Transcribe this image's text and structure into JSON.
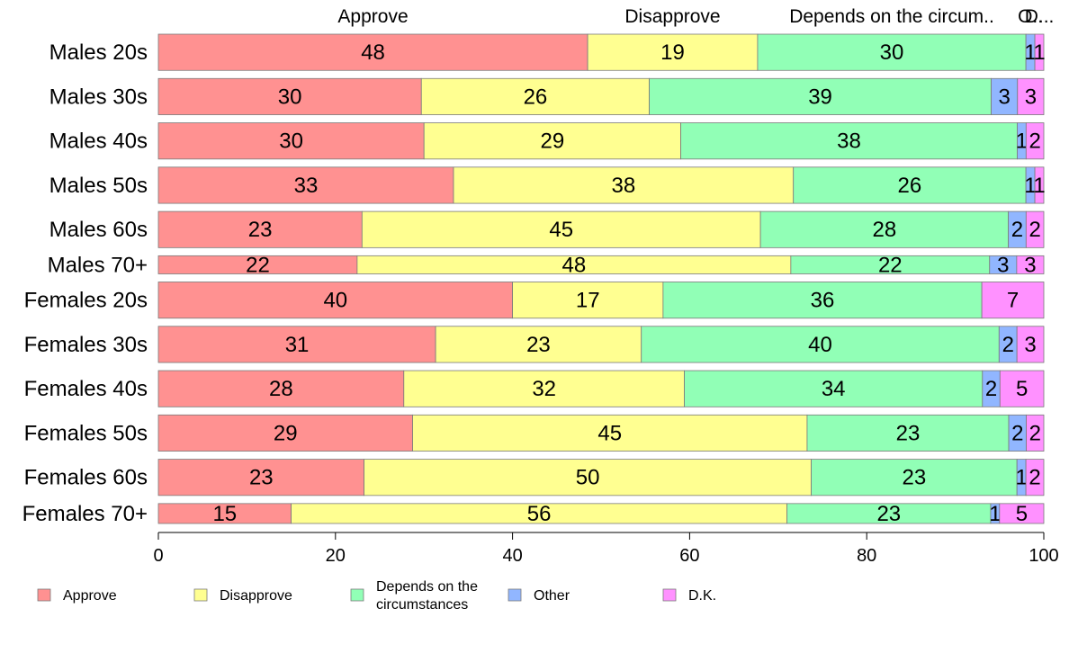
{
  "chart_data": {
    "type": "bar",
    "orientation": "horizontal",
    "stacked": true,
    "title": "",
    "xlabel": "",
    "ylabel": "",
    "xlim": [
      0,
      100
    ],
    "x_ticks": [
      0,
      20,
      40,
      60,
      80,
      100
    ],
    "grid": false,
    "legend_position": "bottom",
    "categories": [
      "Males 20s",
      "Males 30s",
      "Males 40s",
      "Males 50s",
      "Males 60s",
      "Males 70+",
      "Females 20s",
      "Females 30s",
      "Females 40s",
      "Females 50s",
      "Females 60s",
      "Females 70+"
    ],
    "series": [
      {
        "name": "Approve",
        "color": "#ff9191",
        "values": [
          48,
          30,
          30,
          33,
          23,
          22,
          40,
          31,
          28,
          29,
          23,
          15
        ]
      },
      {
        "name": "Disapprove",
        "color": "#ffff91",
        "values": [
          19,
          26,
          29,
          38,
          45,
          48,
          17,
          23,
          32,
          45,
          50,
          56
        ]
      },
      {
        "name": "Depends on the circumstances",
        "color": "#91ffb6",
        "values": [
          30,
          39,
          38,
          26,
          28,
          22,
          36,
          40,
          34,
          23,
          23,
          23
        ]
      },
      {
        "name": "Other",
        "color": "#91b6ff",
        "values": [
          1,
          3,
          1,
          1,
          2,
          3,
          0,
          2,
          2,
          2,
          1,
          1
        ]
      },
      {
        "name": "D.K.",
        "color": "#ff91ff",
        "values": [
          1,
          3,
          2,
          1,
          2,
          3,
          7,
          3,
          5,
          2,
          2,
          5
        ]
      }
    ],
    "legend_labels": [
      [
        "Approve"
      ],
      [
        "Disapprove"
      ],
      [
        "Depends on the",
        "circumstances"
      ],
      [
        "Other"
      ],
      [
        "D.K."
      ]
    ],
    "top_labels": [
      "Approve",
      "Disapprove",
      "Depends on the circum..",
      "O..",
      "D..."
    ],
    "row_weights": [
      1.0,
      1.0,
      1.0,
      1.0,
      1.0,
      0.5,
      1.0,
      1.0,
      1.0,
      1.0,
      1.0,
      0.55
    ]
  }
}
